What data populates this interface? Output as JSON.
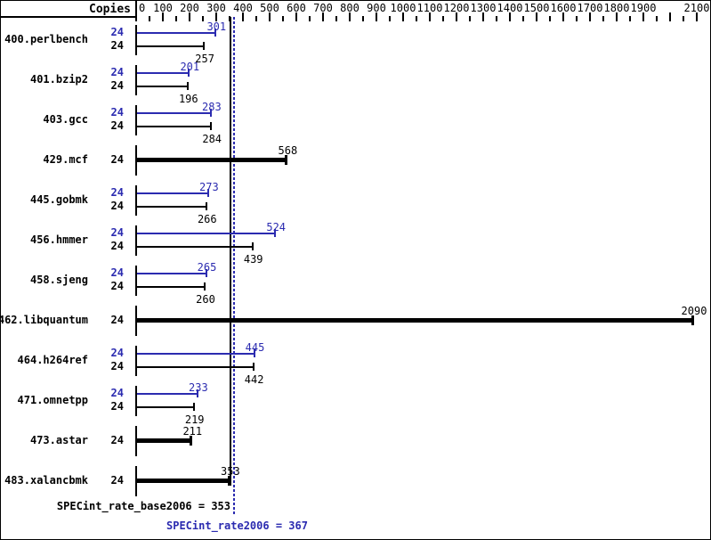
{
  "chart_data": {
    "type": "bar",
    "orientation": "horizontal",
    "title": "",
    "copies_header": "Copies",
    "axis": {
      "min": 0,
      "max": 2100,
      "minor_tick_step": 50,
      "major_tick_step": 100,
      "tick_labels": [
        "0",
        "100",
        "200",
        "300",
        "400",
        "500",
        "600",
        "700",
        "800",
        "900",
        "1000",
        "1100",
        "1200",
        "1300",
        "1400",
        "1500",
        "1600",
        "1700",
        "1800",
        "1900",
        "2100"
      ]
    },
    "benchmarks": [
      {
        "name": "400.perlbench",
        "copies": 24,
        "peak": 301,
        "base": 257
      },
      {
        "name": "401.bzip2",
        "copies": 24,
        "peak": 201,
        "base": 196
      },
      {
        "name": "403.gcc",
        "copies": 24,
        "peak": 283,
        "base": 284
      },
      {
        "name": "429.mcf",
        "copies": 24,
        "base": 568
      },
      {
        "name": "445.gobmk",
        "copies": 24,
        "peak": 273,
        "base": 266
      },
      {
        "name": "456.hmmer",
        "copies": 24,
        "peak": 524,
        "base": 439
      },
      {
        "name": "458.sjeng",
        "copies": 24,
        "peak": 265,
        "base": 260
      },
      {
        "name": "462.libquantum",
        "copies": 24,
        "base": 2090
      },
      {
        "name": "464.h264ref",
        "copies": 24,
        "peak": 445,
        "base": 442
      },
      {
        "name": "471.omnetpp",
        "copies": 24,
        "peak": 233,
        "base": 219
      },
      {
        "name": "473.astar",
        "copies": 24,
        "base": 211
      },
      {
        "name": "483.xalancbmk",
        "copies": 24,
        "base": 353
      }
    ],
    "summary": {
      "base_text": "SPECint_rate_base2006 = 353",
      "base_value": 353,
      "peak_text": "SPECint_rate2006 = 367",
      "peak_value": 367
    },
    "colors": {
      "peak_blue": "#2b2bb0",
      "base_black": "#000000",
      "background": "#ffffff"
    }
  }
}
